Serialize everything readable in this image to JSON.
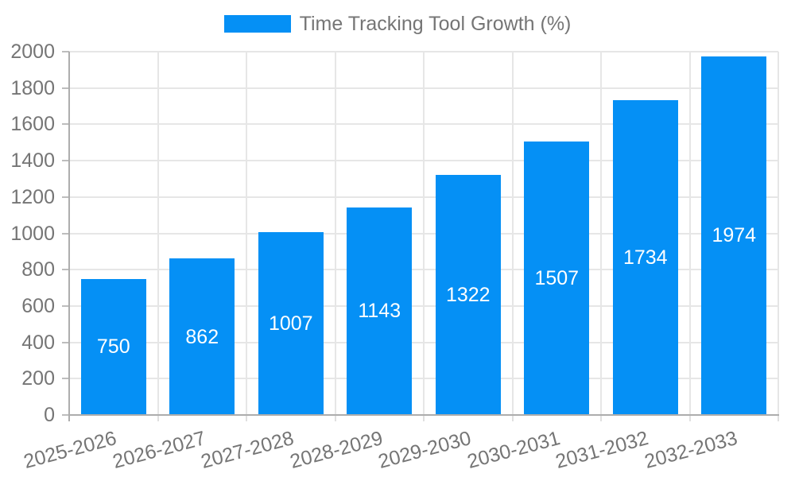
{
  "legend": {
    "label": "Time Tracking Tool Growth (%)"
  },
  "chart_data": {
    "type": "bar",
    "title": "Time Tracking Tool Growth (%)",
    "series_name": "Time Tracking Tool Growth (%)",
    "categories": [
      "2025-2026",
      "2026-2027",
      "2027-2028",
      "2028-2029",
      "2029-2030",
      "2030-2031",
      "2031-2032",
      "2032-2033"
    ],
    "values": [
      750,
      862,
      1007,
      1143,
      1322,
      1507,
      1734,
      1974
    ],
    "xlabel": "",
    "ylabel": "",
    "ylim": [
      0,
      2000
    ],
    "y_ticks": [
      0,
      200,
      400,
      600,
      800,
      1000,
      1200,
      1400,
      1600,
      1800,
      2000
    ],
    "grid": true,
    "legend_position": "top",
    "value_labels_visible": true
  },
  "colors": {
    "bar": "#0590f5",
    "value_label": "#ffffff",
    "text": "#757575",
    "grid": "#e6e6e6",
    "axis": "#adadad",
    "y_tick": "#bdbdbd",
    "x_tick": "#e0e0e0",
    "background": "#ffffff"
  }
}
